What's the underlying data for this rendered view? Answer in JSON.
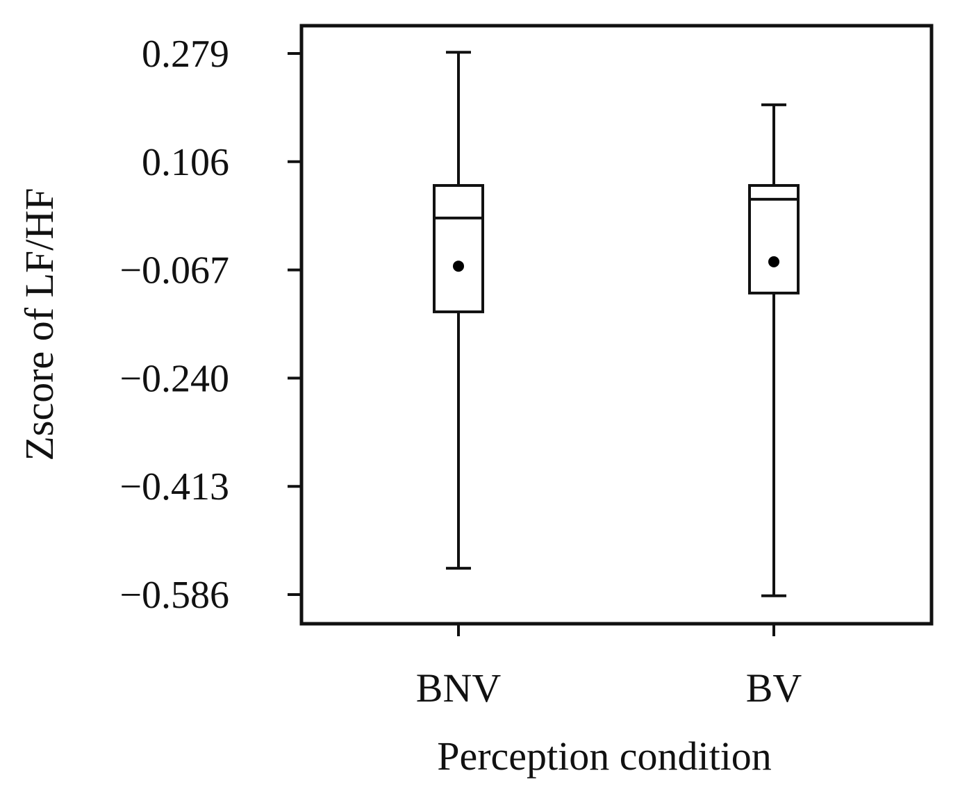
{
  "chart_data": {
    "type": "boxplot",
    "title": "",
    "xlabel": "Perception condition",
    "ylabel": "Zscore of LF/HF",
    "ylim": [
      -0.63,
      0.32
    ],
    "yticks": [
      0.279,
      0.106,
      -0.067,
      -0.24,
      -0.413,
      -0.586
    ],
    "ytick_labels": [
      "0.279",
      "0.106",
      "−0.067",
      "−0.240",
      "−0.413",
      "−0.586"
    ],
    "categories": [
      "BNV",
      "BV"
    ],
    "boxes": [
      {
        "name": "BNV",
        "whisker_low": -0.544,
        "q1": -0.134,
        "median": 0.016,
        "q3": 0.068,
        "whisker_high": 0.281,
        "mean": -0.061
      },
      {
        "name": "BV",
        "whisker_low": -0.588,
        "q1": -0.104,
        "median": 0.046,
        "q3": 0.068,
        "whisker_high": 0.197,
        "mean": -0.054
      }
    ],
    "colors": {
      "line": "#111111",
      "mean_marker": "#000000",
      "background": "#ffffff"
    }
  }
}
